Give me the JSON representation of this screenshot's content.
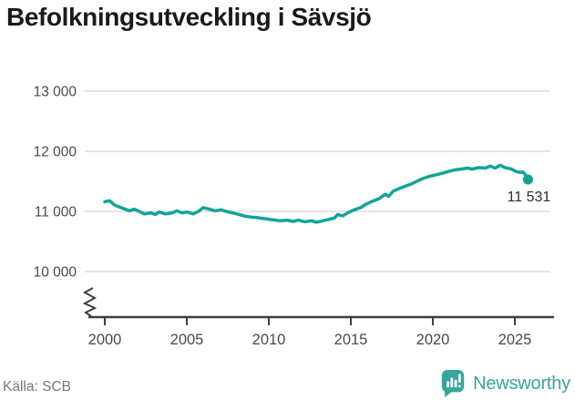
{
  "page": {
    "title": "Befolkningsutveckling i Sävsjö",
    "source": "Källa: SCB",
    "brand": {
      "name": "Newsworthy"
    }
  },
  "colors": {
    "line": "#13a496",
    "brand": "#38a59a",
    "grid": "#dcdcdc",
    "axis": "#3f3f3f",
    "tick_label": "#4a4a4a",
    "end_label": "#2e2e2e"
  },
  "chart_data": {
    "type": "line",
    "title": "Befolkningsutveckling i Sävsjö",
    "source": "Källa: SCB",
    "grid": "horizontal-only",
    "x_axis": {
      "ticks": [
        2000,
        2005,
        2010,
        2015,
        2020,
        2025
      ],
      "axis_break_at_origin": true
    },
    "y_axis": {
      "ticks": [
        {
          "value": 10000,
          "label": "10 000"
        },
        {
          "value": 11000,
          "label": "11 000"
        },
        {
          "value": 12000,
          "label": "12 000"
        },
        {
          "value": 13000,
          "label": "13 000"
        }
      ]
    },
    "series": [
      {
        "name": "Befolkning",
        "points": [
          [
            2000.0,
            11162
          ],
          [
            2000.3,
            11175
          ],
          [
            2000.6,
            11104
          ],
          [
            2001.1,
            11052
          ],
          [
            2001.5,
            11010
          ],
          [
            2001.8,
            11036
          ],
          [
            2002.1,
            11000
          ],
          [
            2002.4,
            10958
          ],
          [
            2002.8,
            10974
          ],
          [
            2003.1,
            10948
          ],
          [
            2003.3,
            10990
          ],
          [
            2003.7,
            10958
          ],
          [
            2004.1,
            10974
          ],
          [
            2004.4,
            11010
          ],
          [
            2004.7,
            10974
          ],
          [
            2005.0,
            10990
          ],
          [
            2005.4,
            10958
          ],
          [
            2005.7,
            11000
          ],
          [
            2006.0,
            11062
          ],
          [
            2006.3,
            11042
          ],
          [
            2006.7,
            11010
          ],
          [
            2007.1,
            11026
          ],
          [
            2007.4,
            11000
          ],
          [
            2007.8,
            10974
          ],
          [
            2008.2,
            10948
          ],
          [
            2008.5,
            10922
          ],
          [
            2008.9,
            10906
          ],
          [
            2009.3,
            10896
          ],
          [
            2009.6,
            10885
          ],
          [
            2010.0,
            10870
          ],
          [
            2010.4,
            10854
          ],
          [
            2010.7,
            10844
          ],
          [
            2011.1,
            10854
          ],
          [
            2011.5,
            10833
          ],
          [
            2011.8,
            10854
          ],
          [
            2012.2,
            10828
          ],
          [
            2012.6,
            10844
          ],
          [
            2012.9,
            10820
          ],
          [
            2013.3,
            10844
          ],
          [
            2013.7,
            10870
          ],
          [
            2014.0,
            10890
          ],
          [
            2014.2,
            10948
          ],
          [
            2014.5,
            10926
          ],
          [
            2014.8,
            10974
          ],
          [
            2015.2,
            11026
          ],
          [
            2015.6,
            11062
          ],
          [
            2015.9,
            11115
          ],
          [
            2016.3,
            11167
          ],
          [
            2016.7,
            11208
          ],
          [
            2017.1,
            11286
          ],
          [
            2017.3,
            11250
          ],
          [
            2017.6,
            11339
          ],
          [
            2017.9,
            11375
          ],
          [
            2018.3,
            11417
          ],
          [
            2018.7,
            11458
          ],
          [
            2019.1,
            11510
          ],
          [
            2019.4,
            11547
          ],
          [
            2019.8,
            11583
          ],
          [
            2020.2,
            11609
          ],
          [
            2020.6,
            11635
          ],
          [
            2020.9,
            11661
          ],
          [
            2021.3,
            11688
          ],
          [
            2021.7,
            11703
          ],
          [
            2022.1,
            11719
          ],
          [
            2022.4,
            11703
          ],
          [
            2022.8,
            11729
          ],
          [
            2023.2,
            11719
          ],
          [
            2023.5,
            11755
          ],
          [
            2023.8,
            11719
          ],
          [
            2024.1,
            11766
          ],
          [
            2024.4,
            11729
          ],
          [
            2024.8,
            11703
          ],
          [
            2025.1,
            11661
          ],
          [
            2025.3,
            11648
          ],
          [
            2025.5,
            11655
          ],
          [
            2025.7,
            11590
          ],
          [
            2025.8,
            11531
          ]
        ]
      }
    ],
    "end_point": {
      "year": 2025.8,
      "value": 11531,
      "label": "11 531"
    }
  }
}
